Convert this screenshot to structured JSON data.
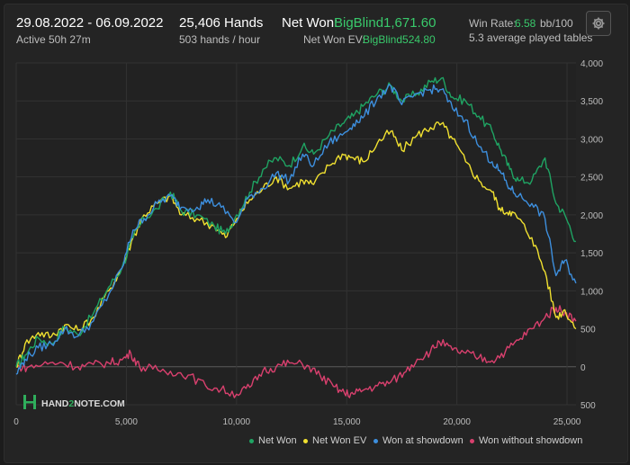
{
  "header": {
    "date_range": "29.08.2022 - 06.09.2022",
    "active": "Active 50h 27m",
    "hands": "25,406 Hands",
    "hands_per_hour": "503 hands / hour",
    "net_won_label": "Net Won:",
    "net_won_value": "BigBlind1,671.60",
    "net_won_ev_label": "Net Won  EV:",
    "net_won_ev_value": "BigBlind524.80",
    "win_rate_label": "Win Rate:",
    "win_rate_value": "6.58",
    "win_rate_unit": "bb/100",
    "avg_tables": "5.3 average played tables",
    "settings_icon": "gear-icon"
  },
  "watermark": {
    "prefix": "HAND",
    "mid": "2",
    "suffix": "NOTE.COM"
  },
  "chart_data": {
    "type": "line",
    "xlim": [
      0,
      25406
    ],
    "ylim": [
      -500,
      4000
    ],
    "x_ticks": [
      0,
      5000,
      10000,
      15000,
      20000,
      25000
    ],
    "x_tick_labels": [
      "0",
      "5,000",
      "10,000",
      "15,000",
      "20,000",
      "25,000"
    ],
    "y_ticks": [
      4000,
      3500,
      3000,
      2500,
      2000,
      1500,
      1000,
      500,
      0,
      -500
    ],
    "y_tick_labels": [
      "4,000",
      "3,500",
      "3,000",
      "2,500",
      "2,000",
      "1,500",
      "1,000",
      "500",
      "0",
      "500"
    ],
    "grid": true,
    "legend_position": "bottom-right",
    "series": [
      {
        "name": "Net Won",
        "color": "#1fa463",
        "points": [
          [
            0,
            0
          ],
          [
            400,
            150
          ],
          [
            1000,
            380
          ],
          [
            1600,
            300
          ],
          [
            2200,
            520
          ],
          [
            2800,
            420
          ],
          [
            3500,
            700
          ],
          [
            4200,
            1050
          ],
          [
            4800,
            1300
          ],
          [
            5300,
            1700
          ],
          [
            5800,
            1950
          ],
          [
            6400,
            2080
          ],
          [
            7000,
            2300
          ],
          [
            7500,
            2050
          ],
          [
            8200,
            2000
          ],
          [
            9000,
            1850
          ],
          [
            9500,
            1750
          ],
          [
            10000,
            2000
          ],
          [
            10600,
            2300
          ],
          [
            11200,
            2600
          ],
          [
            11800,
            2750
          ],
          [
            12400,
            2650
          ],
          [
            13000,
            2900
          ],
          [
            13500,
            2800
          ],
          [
            14200,
            3050
          ],
          [
            14800,
            3200
          ],
          [
            15300,
            3300
          ],
          [
            15800,
            3450
          ],
          [
            16400,
            3600
          ],
          [
            17000,
            3700
          ],
          [
            17500,
            3500
          ],
          [
            18200,
            3600
          ],
          [
            18800,
            3750
          ],
          [
            19300,
            3800
          ],
          [
            19800,
            3550
          ],
          [
            20400,
            3500
          ],
          [
            21000,
            3300
          ],
          [
            21600,
            3100
          ],
          [
            22000,
            2850
          ],
          [
            22400,
            2600
          ],
          [
            22800,
            2450
          ],
          [
            23400,
            2450
          ],
          [
            24000,
            2750
          ],
          [
            24500,
            2150
          ],
          [
            24900,
            2000
          ],
          [
            25400,
            1650
          ]
        ]
      },
      {
        "name": "Net Won  EV",
        "color": "#f0e030",
        "points": [
          [
            0,
            0
          ],
          [
            400,
            300
          ],
          [
            1000,
            450
          ],
          [
            1600,
            400
          ],
          [
            2200,
            550
          ],
          [
            2800,
            480
          ],
          [
            3500,
            650
          ],
          [
            4200,
            1000
          ],
          [
            4800,
            1300
          ],
          [
            5300,
            1700
          ],
          [
            5800,
            2000
          ],
          [
            6400,
            2150
          ],
          [
            7000,
            2250
          ],
          [
            7500,
            2000
          ],
          [
            8200,
            1950
          ],
          [
            9000,
            1850
          ],
          [
            9500,
            1700
          ],
          [
            10000,
            1950
          ],
          [
            10600,
            2200
          ],
          [
            11200,
            2350
          ],
          [
            11800,
            2500
          ],
          [
            12400,
            2350
          ],
          [
            13000,
            2450
          ],
          [
            13500,
            2400
          ],
          [
            14200,
            2650
          ],
          [
            14800,
            2800
          ],
          [
            15300,
            2750
          ],
          [
            15800,
            2700
          ],
          [
            16400,
            2950
          ],
          [
            17000,
            3100
          ],
          [
            17500,
            2850
          ],
          [
            18200,
            3050
          ],
          [
            18800,
            3150
          ],
          [
            19300,
            3200
          ],
          [
            19800,
            3000
          ],
          [
            20400,
            2700
          ],
          [
            21000,
            2450
          ],
          [
            21600,
            2300
          ],
          [
            22000,
            2050
          ],
          [
            22400,
            2050
          ],
          [
            22800,
            1950
          ],
          [
            23400,
            1700
          ],
          [
            24000,
            1250
          ],
          [
            24500,
            650
          ],
          [
            24900,
            750
          ],
          [
            25400,
            500
          ]
        ]
      },
      {
        "name": "Won at showdown",
        "color": "#3d8fde",
        "points": [
          [
            0,
            -100
          ],
          [
            400,
            100
          ],
          [
            1000,
            250
          ],
          [
            1600,
            300
          ],
          [
            2200,
            500
          ],
          [
            2800,
            400
          ],
          [
            3500,
            600
          ],
          [
            4200,
            950
          ],
          [
            4800,
            1300
          ],
          [
            5300,
            1800
          ],
          [
            5800,
            1950
          ],
          [
            6400,
            2150
          ],
          [
            7000,
            2250
          ],
          [
            7500,
            2100
          ],
          [
            8200,
            2100
          ],
          [
            8700,
            2200
          ],
          [
            9300,
            2100
          ],
          [
            10000,
            1900
          ],
          [
            10600,
            2250
          ],
          [
            11200,
            2350
          ],
          [
            11800,
            2550
          ],
          [
            12400,
            2450
          ],
          [
            13000,
            2800
          ],
          [
            13500,
            2650
          ],
          [
            14200,
            2950
          ],
          [
            14800,
            3050
          ],
          [
            15300,
            3200
          ],
          [
            15800,
            3300
          ],
          [
            16400,
            3550
          ],
          [
            17000,
            3700
          ],
          [
            17500,
            3450
          ],
          [
            18200,
            3600
          ],
          [
            18800,
            3650
          ],
          [
            19300,
            3650
          ],
          [
            19800,
            3400
          ],
          [
            20400,
            3250
          ],
          [
            21000,
            2900
          ],
          [
            21600,
            2700
          ],
          [
            22000,
            2550
          ],
          [
            22400,
            2350
          ],
          [
            22800,
            2250
          ],
          [
            23400,
            2150
          ],
          [
            24000,
            1950
          ],
          [
            24500,
            1200
          ],
          [
            24900,
            1400
          ],
          [
            25400,
            1100
          ]
        ]
      },
      {
        "name": "Won without showdown",
        "color": "#d9406e",
        "points": [
          [
            0,
            0
          ],
          [
            500,
            -10
          ],
          [
            1200,
            30
          ],
          [
            2000,
            60
          ],
          [
            2800,
            0
          ],
          [
            3500,
            30
          ],
          [
            4200,
            50
          ],
          [
            4800,
            90
          ],
          [
            5200,
            180
          ],
          [
            5600,
            0
          ],
          [
            6200,
            -30
          ],
          [
            7000,
            -60
          ],
          [
            7800,
            -110
          ],
          [
            8600,
            -250
          ],
          [
            9300,
            -300
          ],
          [
            10000,
            -360
          ],
          [
            10600,
            -270
          ],
          [
            11200,
            -50
          ],
          [
            11800,
            0
          ],
          [
            12400,
            50
          ],
          [
            13200,
            20
          ],
          [
            13800,
            -120
          ],
          [
            14400,
            -260
          ],
          [
            14900,
            -350
          ],
          [
            15300,
            -360
          ],
          [
            15800,
            -300
          ],
          [
            16400,
            -250
          ],
          [
            17000,
            -200
          ],
          [
            17600,
            -80
          ],
          [
            18200,
            100
          ],
          [
            18800,
            200
          ],
          [
            19200,
            330
          ],
          [
            19800,
            220
          ],
          [
            20400,
            180
          ],
          [
            21000,
            120
          ],
          [
            21600,
            80
          ],
          [
            22200,
            200
          ],
          [
            22800,
            350
          ],
          [
            23400,
            500
          ],
          [
            24000,
            650
          ],
          [
            24500,
            780
          ],
          [
            24900,
            720
          ],
          [
            25400,
            600
          ]
        ]
      }
    ]
  }
}
